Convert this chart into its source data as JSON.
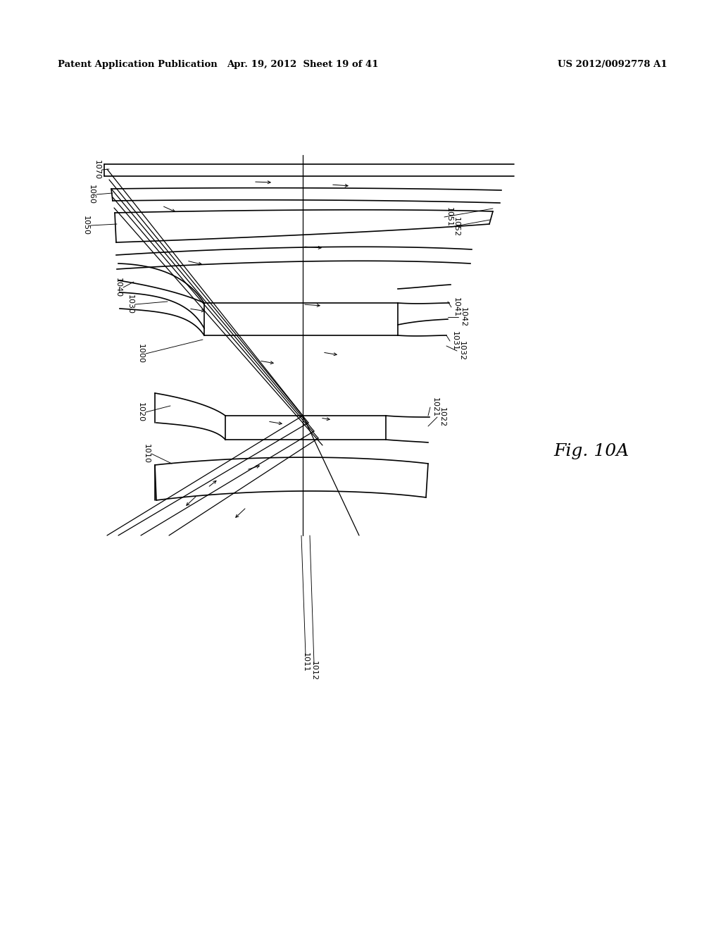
{
  "bg_color": "#ffffff",
  "lc": "#000000",
  "header_left": "Patent Application Publication",
  "header_mid": "Apr. 19, 2012  Sheet 19 of 41",
  "header_right": "US 2012/0092778 A1",
  "fig_label": "Fig. 10A"
}
